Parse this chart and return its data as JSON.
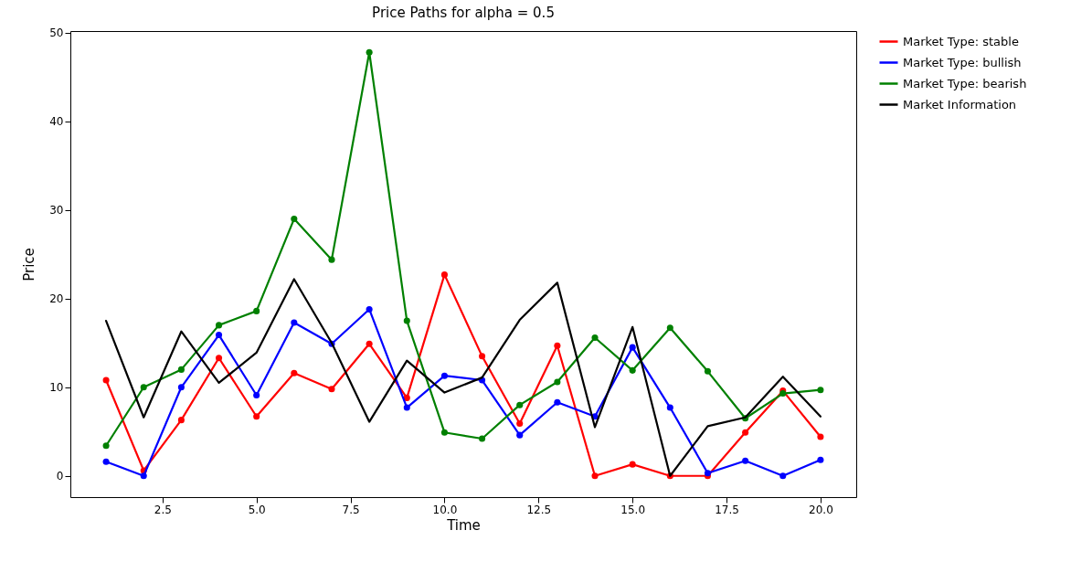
{
  "chart_data": {
    "type": "line",
    "title": "Price Paths for alpha = 0.5",
    "xlabel": "Time",
    "ylabel": "Price",
    "x": [
      1,
      2,
      3,
      4,
      5,
      6,
      7,
      8,
      9,
      10,
      11,
      12,
      13,
      14,
      15,
      16,
      17,
      18,
      19,
      20
    ],
    "xlim": [
      0.05,
      20.95
    ],
    "ylim": [
      -2.4,
      50.2
    ],
    "xticks": [
      {
        "value": 2.5,
        "label": "2.5"
      },
      {
        "value": 5,
        "label": "5.0"
      },
      {
        "value": 7.5,
        "label": "7.5"
      },
      {
        "value": 10,
        "label": "10.0"
      },
      {
        "value": 12.5,
        "label": "12.5"
      },
      {
        "value": 15,
        "label": "15.0"
      },
      {
        "value": 17.5,
        "label": "17.5"
      },
      {
        "value": 20,
        "label": "20.0"
      }
    ],
    "yticks": [
      0,
      10,
      20,
      30,
      40,
      50
    ],
    "grid": false,
    "legend": "top right",
    "line_style": "solid",
    "series": [
      {
        "name": "Market Type: stable",
        "color": "#ff0000",
        "marker": "circle",
        "values": [
          10.8,
          0.6,
          6.3,
          13.3,
          6.7,
          11.6,
          9.8,
          14.9,
          8.8,
          22.7,
          13.5,
          5.9,
          14.7,
          0,
          1.3,
          0,
          0,
          4.9,
          9.6,
          4.4
        ]
      },
      {
        "name": "Market Type: bullish",
        "color": "#0000ff",
        "marker": "circle",
        "values": [
          1.6,
          0,
          10.0,
          15.9,
          9.1,
          17.3,
          14.9,
          18.8,
          7.7,
          11.3,
          10.8,
          4.6,
          8.3,
          6.7,
          14.5,
          7.7,
          0.3,
          1.7,
          0,
          1.8
        ]
      },
      {
        "name": "Market Type: bearish",
        "color": "#008000",
        "marker": "circle",
        "values": [
          3.4,
          10.0,
          12.0,
          17.0,
          18.6,
          29.0,
          24.4,
          47.8,
          17.5,
          4.9,
          4.2,
          8.0,
          10.6,
          15.6,
          11.9,
          16.7,
          11.8,
          6.5,
          9.3,
          9.7
        ]
      },
      {
        "name": "Market Information",
        "color": "#000000",
        "marker": "none",
        "values": [
          17.5,
          6.6,
          16.3,
          10.5,
          13.9,
          22.2,
          15.0,
          6.1,
          13.0,
          9.4,
          11.1,
          17.6,
          21.8,
          5.5,
          16.8,
          0,
          5.6,
          6.6,
          11.2,
          6.7
        ]
      }
    ]
  }
}
